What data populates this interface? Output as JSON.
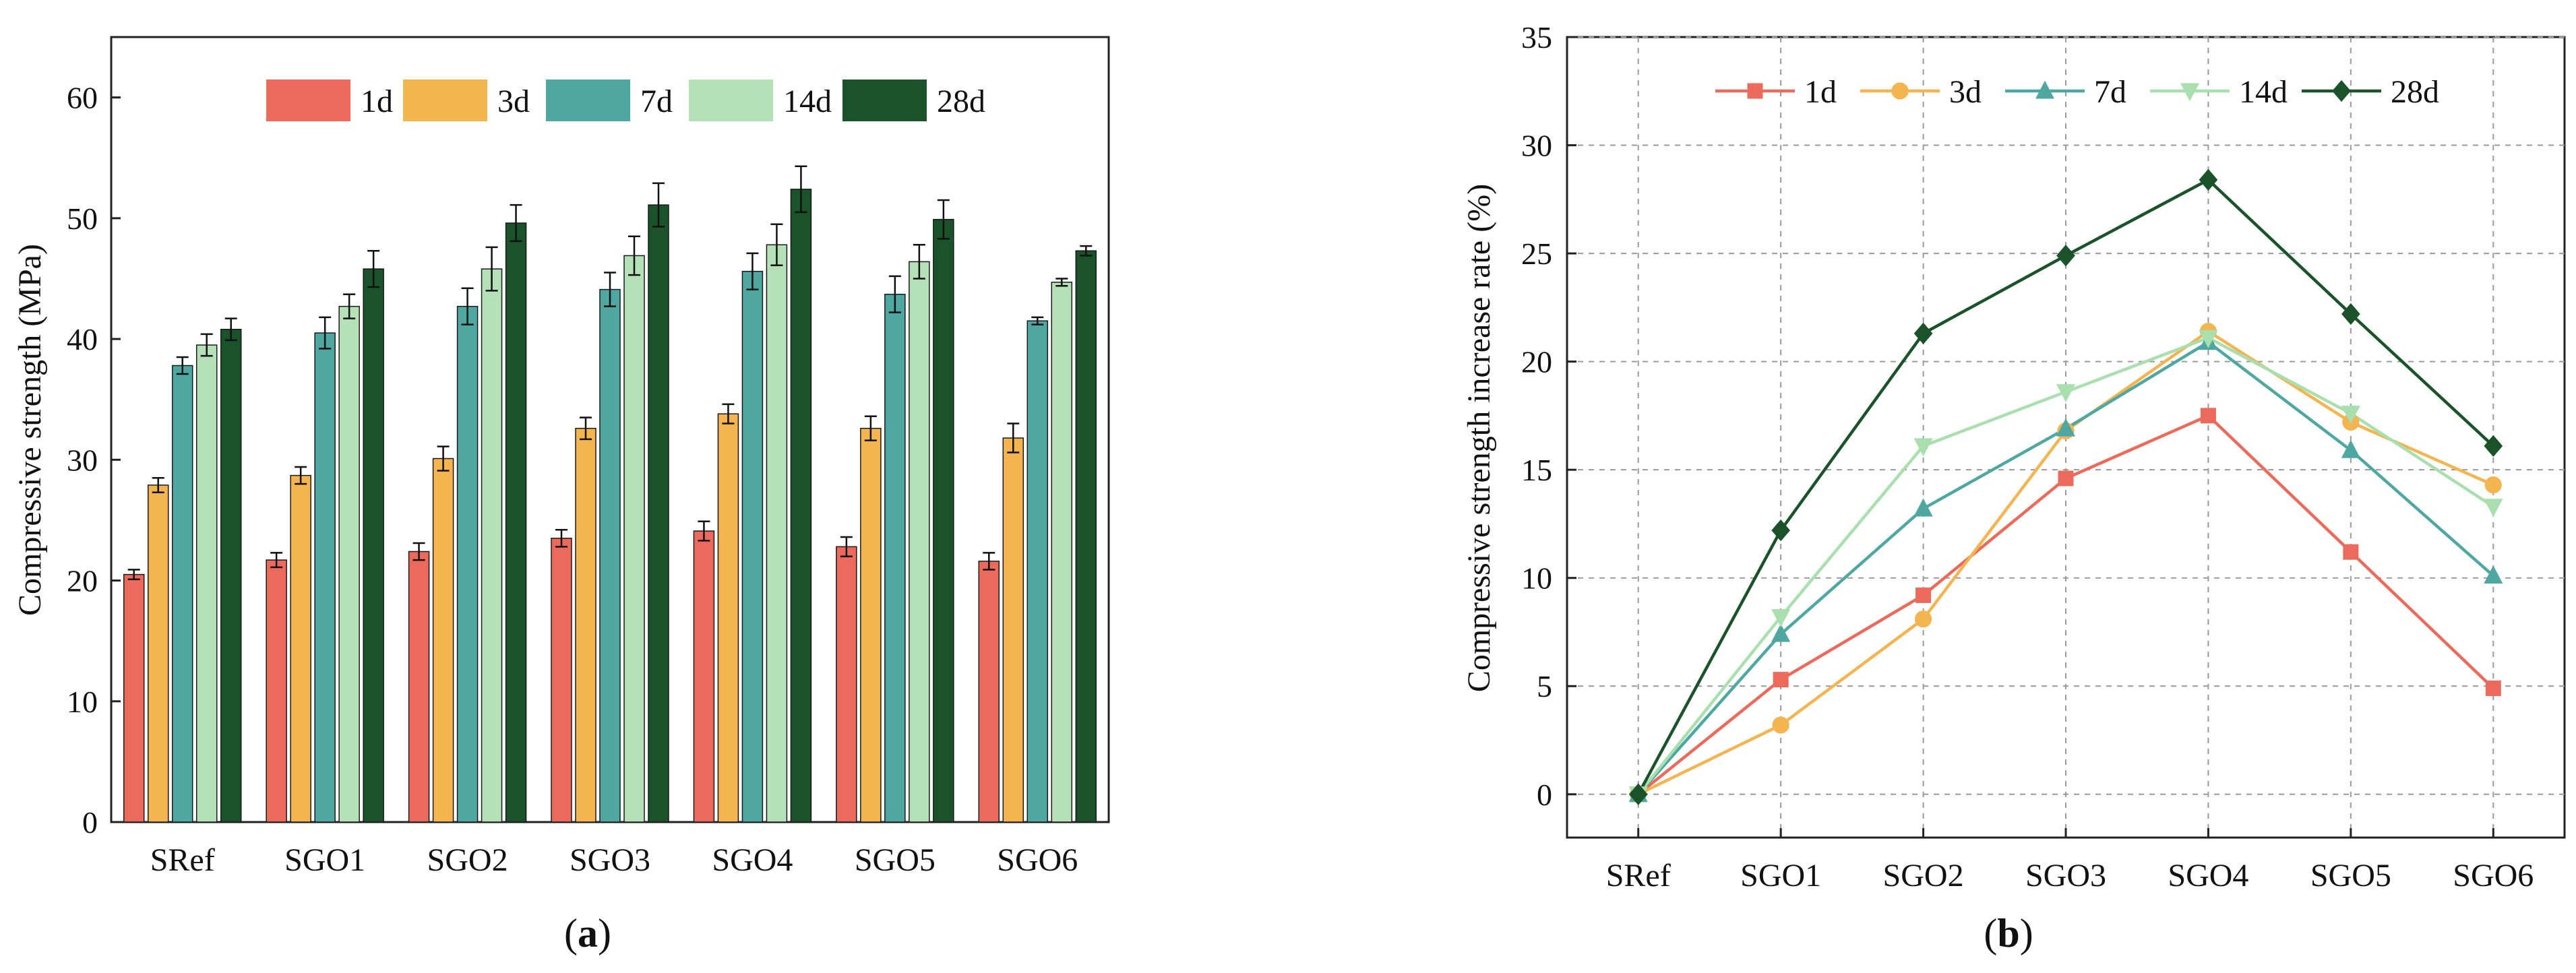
{
  "chart_data": [
    {
      "type": "bar",
      "panel_label": "(a)",
      "ylabel": "Compressive strength (MPa)",
      "ylim": [
        0,
        65
      ],
      "yticks": [
        0,
        10,
        20,
        30,
        40,
        50,
        60
      ],
      "categories": [
        "SRef",
        "SGO1",
        "SGO2",
        "SGO3",
        "SGO4",
        "SGO5",
        "SGO6"
      ],
      "legend_position": "top-center",
      "series": [
        {
          "name": "1d",
          "color": "#ec6a5c",
          "values": [
            20.5,
            21.7,
            22.4,
            23.5,
            24.1,
            22.8,
            21.6
          ],
          "errors": [
            0.4,
            0.6,
            0.7,
            0.7,
            0.8,
            0.8,
            0.7
          ]
        },
        {
          "name": "3d",
          "color": "#f4b450",
          "values": [
            27.9,
            28.7,
            30.1,
            32.6,
            33.8,
            32.6,
            31.8
          ],
          "errors": [
            0.6,
            0.7,
            1.0,
            0.9,
            0.8,
            1.0,
            1.2
          ]
        },
        {
          "name": "7d",
          "color": "#4ea8a1",
          "values": [
            37.8,
            40.5,
            42.7,
            44.1,
            45.6,
            43.7,
            41.5
          ],
          "errors": [
            0.7,
            1.3,
            1.5,
            1.4,
            1.5,
            1.5,
            0.3
          ]
        },
        {
          "name": "14d",
          "color": "#b5e0b8",
          "values": [
            39.5,
            42.7,
            45.8,
            46.9,
            47.8,
            46.4,
            44.7
          ],
          "errors": [
            0.9,
            1.0,
            1.8,
            1.6,
            1.7,
            1.4,
            0.3
          ]
        },
        {
          "name": "28d",
          "color": "#1a5229",
          "values": [
            40.8,
            45.8,
            49.6,
            51.1,
            52.4,
            49.9,
            47.3
          ],
          "errors": [
            0.9,
            1.5,
            1.5,
            1.8,
            1.9,
            1.6,
            0.4
          ]
        }
      ]
    },
    {
      "type": "line",
      "panel_label": "(b)",
      "ylabel": "Compressive strength increase rate (%)",
      "ylim": [
        -2,
        35
      ],
      "yticks": [
        0,
        5,
        10,
        15,
        20,
        25,
        30,
        35
      ],
      "categories": [
        "SRef",
        "SGO1",
        "SGO2",
        "SGO3",
        "SGO4",
        "SGO5",
        "SGO6"
      ],
      "grid": true,
      "legend_position": "top",
      "series": [
        {
          "name": "1d",
          "color": "#ec6a5c",
          "marker": "square",
          "values": [
            0,
            5.3,
            9.2,
            14.6,
            17.5,
            11.2,
            4.9
          ]
        },
        {
          "name": "3d",
          "color": "#f4b450",
          "marker": "circle",
          "values": [
            0,
            3.2,
            8.1,
            16.8,
            21.4,
            17.2,
            14.3
          ]
        },
        {
          "name": "7d",
          "color": "#4ea8a1",
          "marker": "triangle-up",
          "values": [
            0,
            7.4,
            13.2,
            16.9,
            20.9,
            15.9,
            10.1
          ]
        },
        {
          "name": "14d",
          "color": "#a9dfae",
          "marker": "triangle-down",
          "values": [
            0,
            8.2,
            16.1,
            18.6,
            21.1,
            17.6,
            13.3
          ]
        },
        {
          "name": "28d",
          "color": "#1a5229",
          "marker": "diamond",
          "values": [
            0,
            12.2,
            21.3,
            24.9,
            28.4,
            22.2,
            16.1
          ]
        }
      ]
    }
  ]
}
